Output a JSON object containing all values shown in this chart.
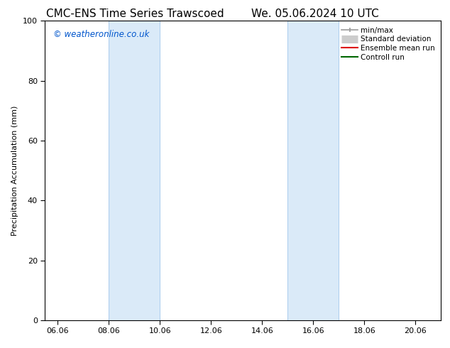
{
  "title_left": "CMC-ENS Time Series Trawscoed",
  "title_right": "We. 05.06.2024 10 UTC",
  "ylabel": "Precipitation Accumulation (mm)",
  "watermark": "© weatheronline.co.uk",
  "watermark_color": "#0055cc",
  "xlim_left": 5.5,
  "xlim_right": 21.0,
  "ylim_bottom": 0,
  "ylim_top": 100,
  "xtick_labels": [
    "06.06",
    "08.06",
    "10.06",
    "12.06",
    "14.06",
    "16.06",
    "18.06",
    "20.06"
  ],
  "xtick_positions": [
    6,
    8,
    10,
    12,
    14,
    16,
    18,
    20
  ],
  "ytick_positions": [
    0,
    20,
    40,
    60,
    80,
    100
  ],
  "shade_bands": [
    {
      "x_start": 8.0,
      "x_end": 10.0
    },
    {
      "x_start": 15.0,
      "x_end": 17.0
    }
  ],
  "shade_color": "#daeaf8",
  "shade_edge_color": "#aaccee",
  "legend_entries": [
    {
      "label": "min/max",
      "color": "#999999",
      "lw": 1.2,
      "style": "errorbar"
    },
    {
      "label": "Standard deviation",
      "color": "#cccccc",
      "lw": 8,
      "style": "thick"
    },
    {
      "label": "Ensemble mean run",
      "color": "#dd0000",
      "lw": 1.5,
      "style": "line"
    },
    {
      "label": "Controll run",
      "color": "#006600",
      "lw": 1.5,
      "style": "line"
    }
  ],
  "background_color": "#ffffff",
  "tick_fontsize": 8,
  "label_fontsize": 8,
  "title_fontsize": 11
}
